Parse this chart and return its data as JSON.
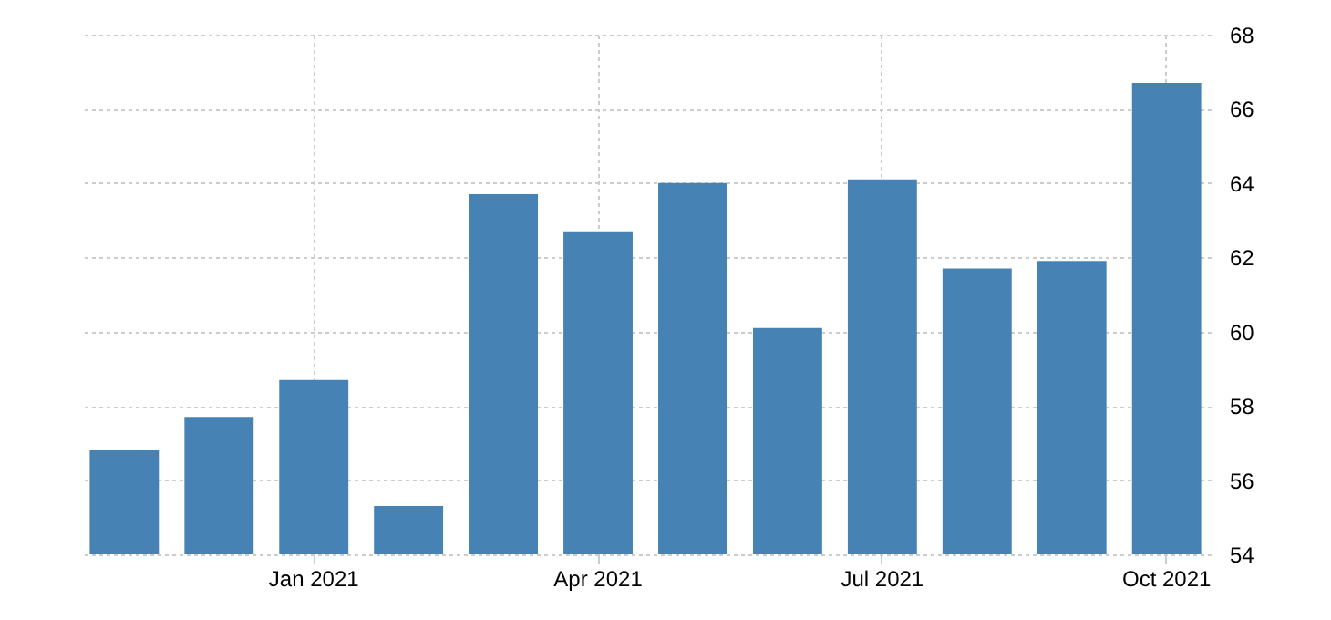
{
  "chart_data": {
    "type": "bar",
    "categories": [
      null,
      null,
      "Jan 2021",
      null,
      null,
      "Apr 2021",
      null,
      null,
      "Jul 2021",
      null,
      null,
      "Oct 2021"
    ],
    "values": [
      56.8,
      57.7,
      58.7,
      55.3,
      63.7,
      62.7,
      64.0,
      60.1,
      64.1,
      61.7,
      61.9,
      66.7
    ],
    "color": "#4682b4",
    "ylim": [
      54,
      68
    ],
    "yticks": [
      54,
      56,
      58,
      60,
      62,
      64,
      66,
      68
    ],
    "grid": true
  }
}
